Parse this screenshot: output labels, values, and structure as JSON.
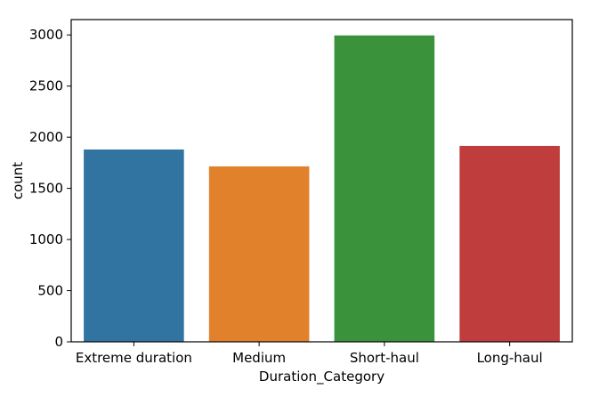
{
  "chart_data": {
    "type": "bar",
    "categories": [
      "Extreme duration",
      "Medium",
      "Short-haul",
      "Long-haul"
    ],
    "values": [
      1880,
      1715,
      2995,
      1915
    ],
    "xlabel": "Duration_Category",
    "ylabel": "count",
    "ylim": [
      0,
      3150
    ],
    "yticks": [
      0,
      500,
      1000,
      1500,
      2000,
      2500,
      3000
    ],
    "grid": false,
    "legend": "none",
    "colors": [
      "#3274a1",
      "#e1812c",
      "#3a923a",
      "#c03d3e"
    ]
  }
}
